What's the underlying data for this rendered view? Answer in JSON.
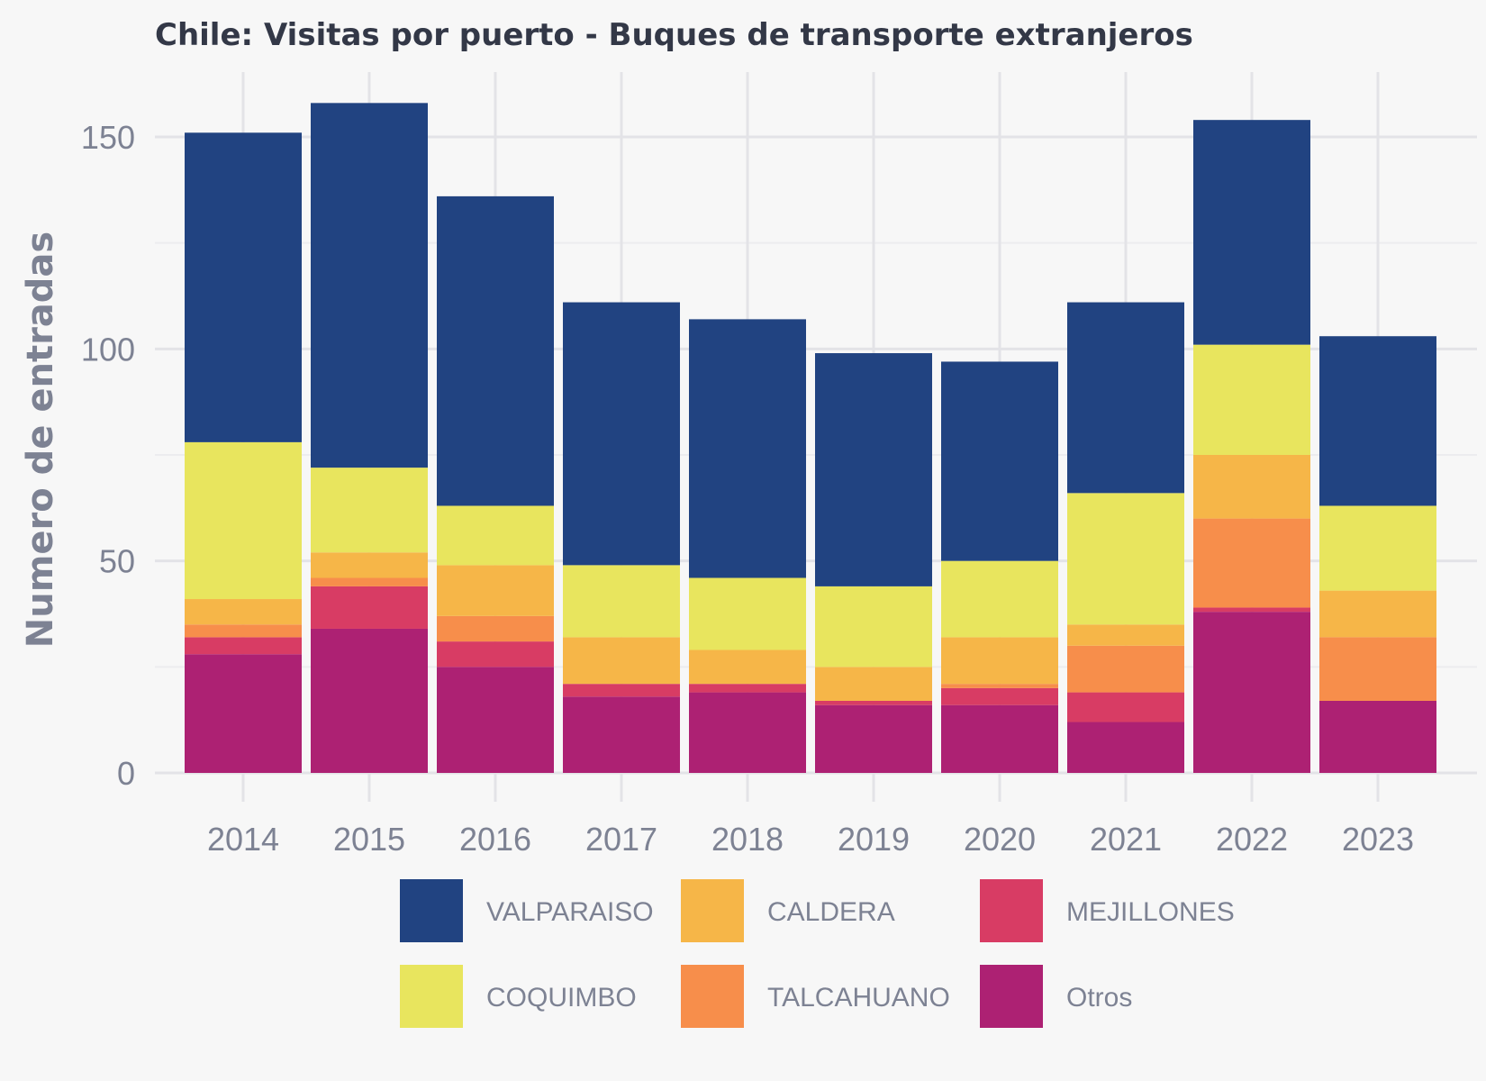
{
  "chart_data": {
    "type": "bar",
    "stacked": true,
    "title": "Chile:  Visitas por puerto - Buques de transporte extranjeros",
    "xlabel": "",
    "ylabel": "Numero de entradas",
    "categories": [
      "2014",
      "2015",
      "2016",
      "2017",
      "2018",
      "2019",
      "2020",
      "2021",
      "2022",
      "2023"
    ],
    "ylim": [
      0,
      160
    ],
    "yticks": [
      0,
      50,
      100,
      150
    ],
    "grid": true,
    "legend_position": "bottom",
    "series": [
      {
        "name": "Otros",
        "color": "#ad2173",
        "values": [
          28,
          34,
          25,
          18,
          19,
          16,
          16,
          12,
          38,
          17
        ]
      },
      {
        "name": "MEJILLONES",
        "color": "#d83c64",
        "values": [
          4,
          10,
          6,
          3,
          2,
          1,
          4,
          7,
          1,
          0
        ]
      },
      {
        "name": "TALCAHUANO",
        "color": "#f78e4b",
        "values": [
          3,
          2,
          6,
          0,
          0,
          0,
          1,
          11,
          21,
          15
        ]
      },
      {
        "name": "CALDERA",
        "color": "#f6b648",
        "values": [
          6,
          6,
          12,
          11,
          8,
          8,
          11,
          5,
          15,
          11
        ]
      },
      {
        "name": "COQUIMBO",
        "color": "#e8e55e",
        "values": [
          37,
          20,
          14,
          17,
          17,
          19,
          18,
          31,
          26,
          20
        ]
      },
      {
        "name": "VALPARAISO",
        "color": "#214381",
        "values": [
          73,
          86,
          73,
          62,
          61,
          55,
          47,
          45,
          53,
          40
        ]
      }
    ],
    "legend_order": [
      "VALPARAISO",
      "CALDERA",
      "MEJILLONES",
      "COQUIMBO",
      "TALCAHUANO",
      "Otros"
    ]
  }
}
